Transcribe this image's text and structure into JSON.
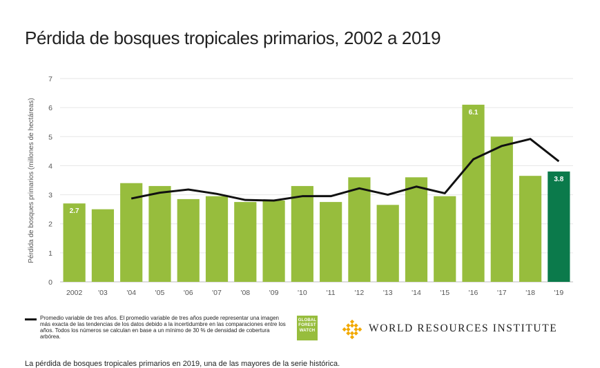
{
  "chart_data": {
    "type": "bar",
    "title": "Pérdida de bosques tropicales primarios, 2002 a 2019",
    "ylabel": "Pérdida de bosques primarios (millones de hectáreas)",
    "xlabel": "",
    "ylim": [
      0,
      7
    ],
    "yticks": [
      "0",
      "1",
      "2",
      "3",
      "4",
      "5",
      "6",
      "7"
    ],
    "categories": [
      "2002",
      "'03",
      "'04",
      "'05",
      "'06",
      "'07",
      "'08",
      "'09",
      "'10",
      "'11",
      "'12",
      "'13",
      "'14",
      "'15",
      "'16",
      "'17",
      "'18",
      "'19"
    ],
    "values": [
      2.7,
      2.5,
      3.4,
      3.3,
      2.85,
      2.95,
      2.75,
      2.8,
      3.3,
      2.75,
      3.6,
      2.65,
      3.6,
      2.95,
      6.1,
      5.0,
      3.65,
      3.8
    ],
    "bar_labels": [
      "2.7",
      "",
      "",
      "",
      "",
      "",
      "",
      "",
      "",
      "",
      "",
      "",
      "",
      "",
      "6.1",
      "",
      "",
      "3.8"
    ],
    "line": {
      "name": "Promedio variable de tres años",
      "values": [
        null,
        null,
        2.87,
        3.07,
        3.18,
        3.03,
        2.82,
        2.8,
        2.95,
        2.95,
        3.22,
        3.0,
        3.28,
        3.05,
        4.22,
        4.68,
        4.92,
        4.15
      ]
    },
    "grid": true,
    "colors": {
      "bar": "#97bd3d",
      "bar_highlight": "#0b7a4b",
      "line": "#111111",
      "grid": "#e6e6e6"
    }
  },
  "legend": {
    "text": "Promedio variable de tres años. El promedio variable de tres años puede representar una imagen más exacta de las tendencias de los datos debido a la incertidumbre en las comparaciones entre los años. Todos los números se calculan en base a un mínimo de 30 % de densidad de cobertura arbórea."
  },
  "logos": {
    "gfw_lines": [
      "GLOBAL",
      "FOREST",
      "WATCH"
    ],
    "wri_name": "WORLD RESOURCES INSTITUTE",
    "gfw_color": "#97bd3d",
    "wri_icon_color": "#f2a900"
  },
  "footnote_cut": "La pérdida de bosques tropicales primarios en 2019, una de las mayores de la serie histórica."
}
